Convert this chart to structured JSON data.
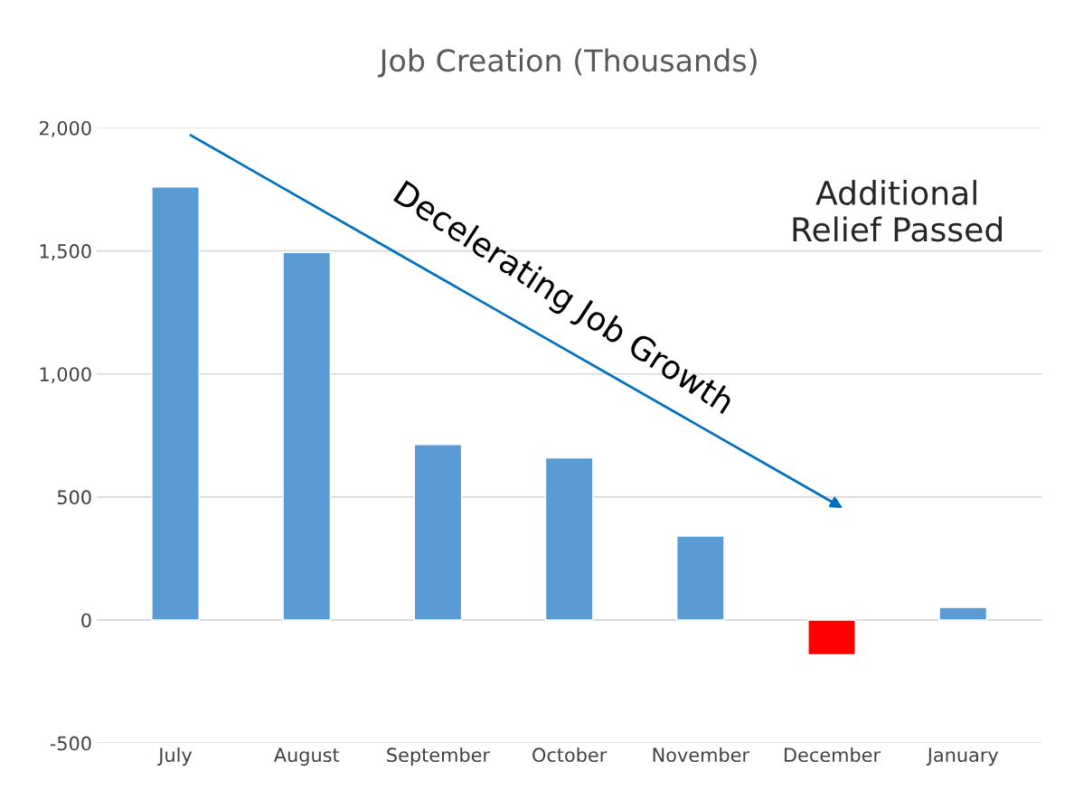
{
  "chart_data": {
    "type": "bar",
    "title": "Job Creation (Thousands)",
    "categories": [
      "July",
      "August",
      "September",
      "October",
      "November",
      "December",
      "January"
    ],
    "values": [
      1760,
      1494,
      713,
      659,
      341,
      -141,
      51
    ],
    "colors": [
      "#5b9bd5",
      "#5b9bd5",
      "#5b9bd5",
      "#5b9bd5",
      "#5b9bd5",
      "#ff0000",
      "#5b9bd5"
    ],
    "ylim": [
      -500,
      2000
    ],
    "yticks": [
      {
        "value": -500,
        "label": "-500"
      },
      0,
      500,
      {
        "value": 1000,
        "label": "1,000"
      },
      {
        "value": 1500,
        "label": "1,500"
      },
      {
        "value": 2000,
        "label": "2,000"
      }
    ],
    "grid": "y",
    "annotations": [
      "Decelerating Job Growth",
      "Additional Relief Passed"
    ]
  }
}
